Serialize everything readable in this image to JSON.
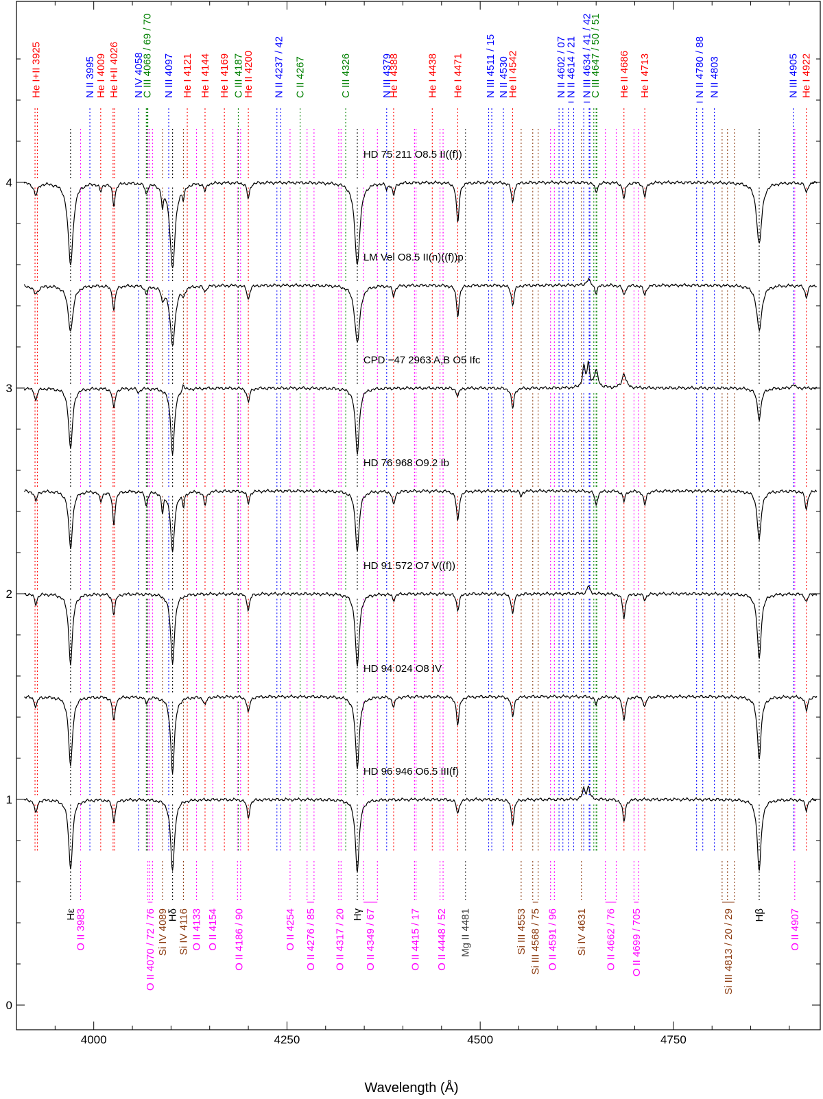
{
  "chart_data": {
    "type": "line",
    "xlabel": "Wavelength (Å)",
    "ylabel": "",
    "xlim": [
      3900,
      4940
    ],
    "ylim": [
      -0.12,
      4.88
    ],
    "x_ticks": [
      4000,
      4250,
      4500,
      4750
    ],
    "x_tick_labels": [
      "4000",
      "4250",
      "4500",
      "4750"
    ],
    "y_ticks": [
      0,
      1,
      2,
      3,
      4
    ],
    "y_tick_labels": [
      "0",
      "1",
      "2",
      "3",
      "4"
    ],
    "grid": false,
    "colors": {
      "red": "#ff0000",
      "blue": "#0000ff",
      "green": "#008000",
      "magenta": "#ff00ff",
      "brown": "#8b3a0f",
      "black": "#000000",
      "gray": "#404040"
    },
    "top_lines": [
      {
        "label": "He I+II 3925",
        "color": "red",
        "waves": [
          3924,
          3927
        ]
      },
      {
        "label": "N II 3995",
        "color": "blue",
        "waves": [
          3995
        ]
      },
      {
        "label": "He I 4009",
        "color": "red",
        "waves": [
          4009
        ]
      },
      {
        "label": "He I+II 4026",
        "color": "red",
        "waves": [
          4025,
          4027
        ]
      },
      {
        "label": "N IV 4058",
        "color": "blue",
        "waves": [
          4058
        ]
      },
      {
        "label": "C III 4068 / 69 / 70",
        "color": "green",
        "waves": [
          4068,
          4069,
          4070
        ]
      },
      {
        "label": "N III 4097",
        "color": "blue",
        "waves": [
          4097
        ]
      },
      {
        "label": "He I 4121",
        "color": "red",
        "waves": [
          4121
        ]
      },
      {
        "label": "He I 4144",
        "color": "red",
        "waves": [
          4144
        ]
      },
      {
        "label": "He I 4169",
        "color": "red",
        "waves": [
          4169
        ]
      },
      {
        "label": "C III 4187",
        "color": "green",
        "waves": [
          4187
        ]
      },
      {
        "label": "He II 4200",
        "color": "red",
        "waves": [
          4200
        ]
      },
      {
        "label": "N II 4237 / 42",
        "color": "blue",
        "waves": [
          4237,
          4242
        ]
      },
      {
        "label": "C II 4267",
        "color": "green",
        "waves": [
          4267
        ]
      },
      {
        "label": "C III 4326",
        "color": "green",
        "waves": [
          4326
        ]
      },
      {
        "label": "N III 4379",
        "color": "blue",
        "waves": [
          4379
        ]
      },
      {
        "label": "He I 4388",
        "color": "red",
        "waves": [
          4388
        ]
      },
      {
        "label": "He I 4438",
        "color": "red",
        "waves": [
          4438
        ]
      },
      {
        "label": "He I 4471",
        "color": "red",
        "waves": [
          4471
        ]
      },
      {
        "label": "N III 4511 / 15",
        "color": "blue",
        "waves": [
          4511,
          4515
        ]
      },
      {
        "label": "N II 4530",
        "color": "blue",
        "waves": [
          4530
        ]
      },
      {
        "label": "He II 4542",
        "color": "red",
        "waves": [
          4542
        ]
      },
      {
        "label": "N II 4602 / 07",
        "color": "blue",
        "waves": [
          4602,
          4607
        ]
      },
      {
        "label": "N II 4614 / 21",
        "color": "blue",
        "waves": [
          4614,
          4621
        ]
      },
      {
        "label": "N III 4634 / 41 / 42",
        "color": "blue",
        "waves": [
          4634,
          4641,
          4642
        ]
      },
      {
        "label": "C III 4647 / 50 / 51",
        "color": "green",
        "waves": [
          4647,
          4650,
          4651
        ]
      },
      {
        "label": "He II 4686",
        "color": "red",
        "waves": [
          4686
        ]
      },
      {
        "label": "He I 4713",
        "color": "red",
        "waves": [
          4713
        ]
      },
      {
        "label": "N II 4780 / 88",
        "color": "blue",
        "waves": [
          4780,
          4788
        ]
      },
      {
        "label": "N II 4803",
        "color": "blue",
        "waves": [
          4803
        ]
      },
      {
        "label": "N III 4905",
        "color": "blue",
        "waves": [
          4905
        ]
      },
      {
        "label": "He I 4922",
        "color": "red",
        "waves": [
          4922
        ]
      }
    ],
    "bottom_lines": [
      {
        "label": "Hε",
        "color": "black",
        "waves": [
          3970
        ]
      },
      {
        "label": "O II 3983",
        "color": "magenta",
        "waves": [
          3983
        ]
      },
      {
        "label": "O II 4070 / 72 / 76",
        "color": "magenta",
        "waves": [
          4070,
          4072,
          4076
        ]
      },
      {
        "label": "Si IV 4089",
        "color": "brown",
        "waves": [
          4089
        ]
      },
      {
        "label": "Hδ",
        "color": "black",
        "waves": [
          4102
        ]
      },
      {
        "label": "Si IV 4116",
        "color": "brown",
        "waves": [
          4116
        ]
      },
      {
        "label": "O II 4133",
        "color": "magenta",
        "waves": [
          4133
        ]
      },
      {
        "label": "O II 4154",
        "color": "magenta",
        "waves": [
          4154
        ]
      },
      {
        "label": "O II 4186 / 90",
        "color": "magenta",
        "waves": [
          4186,
          4190
        ]
      },
      {
        "label": "O II 4254",
        "color": "magenta",
        "waves": [
          4254
        ]
      },
      {
        "label": "O II 4276 / 85",
        "color": "magenta",
        "waves": [
          4276,
          4285
        ]
      },
      {
        "label": "O II 4317 / 20",
        "color": "magenta",
        "waves": [
          4317,
          4320
        ]
      },
      {
        "label": "Hγ",
        "color": "black",
        "waves": [
          4341
        ]
      },
      {
        "label": "O II 4349 / 67",
        "color": "magenta",
        "waves": [
          4349,
          4367
        ]
      },
      {
        "label": "O II 4415 / 17",
        "color": "magenta",
        "waves": [
          4415,
          4417
        ]
      },
      {
        "label": "O II 4448 / 52",
        "color": "magenta",
        "waves": [
          4448,
          4452
        ]
      },
      {
        "label": "Mg II 4481",
        "color": "gray",
        "waves": [
          4481
        ]
      },
      {
        "label": "Si III 4553",
        "color": "brown",
        "waves": [
          4553
        ]
      },
      {
        "label": "Si III 4568 / 75",
        "color": "brown",
        "waves": [
          4568,
          4575
        ]
      },
      {
        "label": "O II 4591 / 96",
        "color": "magenta",
        "waves": [
          4591,
          4596
        ]
      },
      {
        "label": "Si IV 4631",
        "color": "brown",
        "waves": [
          4631
        ]
      },
      {
        "label": "O II 4662 / 76",
        "color": "magenta",
        "waves": [
          4662,
          4676
        ]
      },
      {
        "label": "O II 4699 / 705",
        "color": "magenta",
        "waves": [
          4699,
          4705
        ]
      },
      {
        "label": "Si III 4813 / 20 / 29",
        "color": "brown",
        "waves": [
          4813,
          4820,
          4829
        ]
      },
      {
        "label": "Hβ",
        "color": "black",
        "waves": [
          4861
        ]
      },
      {
        "label": "O II 4907",
        "color": "magenta",
        "waves": [
          4907
        ]
      }
    ],
    "series": [
      {
        "name": "HD 75 211   O8.5 II((f))",
        "offset": 4.0,
        "lines": [
          {
            "w": 3925,
            "d": 0.06,
            "s": 3
          },
          {
            "w": 3970,
            "d": 0.4,
            "s": 4
          },
          {
            "w": 4009,
            "d": 0.04,
            "s": 2
          },
          {
            "w": 4026,
            "d": 0.11,
            "s": 2
          },
          {
            "w": 4068,
            "d": 0.05,
            "s": 2
          },
          {
            "w": 4089,
            "d": 0.1,
            "s": 1.5
          },
          {
            "w": 4102,
            "d": 0.42,
            "s": 4
          },
          {
            "w": 4116,
            "d": 0.06,
            "s": 1.5
          },
          {
            "w": 4144,
            "d": 0.04,
            "s": 2
          },
          {
            "w": 4200,
            "d": 0.08,
            "s": 2
          },
          {
            "w": 4341,
            "d": 0.4,
            "s": 4
          },
          {
            "w": 4379,
            "d": 0.03,
            "s": 1.5
          },
          {
            "w": 4388,
            "d": 0.06,
            "s": 2
          },
          {
            "w": 4471,
            "d": 0.2,
            "s": 2
          },
          {
            "w": 4542,
            "d": 0.1,
            "s": 2
          },
          {
            "w": 4650,
            "d": 0.05,
            "s": 2
          },
          {
            "w": 4686,
            "d": 0.08,
            "s": 2
          },
          {
            "w": 4713,
            "d": 0.07,
            "s": 2
          },
          {
            "w": 4861,
            "d": 0.3,
            "s": 4
          },
          {
            "w": 4922,
            "d": 0.05,
            "s": 2
          }
        ]
      },
      {
        "name": "LM Vel    O8.5 II(n)((f))p",
        "offset": 3.5,
        "lines": [
          {
            "w": 3925,
            "d": 0.04,
            "s": 4
          },
          {
            "w": 3970,
            "d": 0.22,
            "s": 4
          },
          {
            "w": 4026,
            "d": 0.12,
            "s": 2
          },
          {
            "w": 4068,
            "d": 0.04,
            "s": 2
          },
          {
            "w": 4089,
            "d": 0.06,
            "s": 2
          },
          {
            "w": 4102,
            "d": 0.29,
            "s": 4
          },
          {
            "w": 4116,
            "d": 0.04,
            "s": 2
          },
          {
            "w": 4144,
            "d": 0.03,
            "s": 2
          },
          {
            "w": 4200,
            "d": 0.07,
            "s": 2
          },
          {
            "w": 4341,
            "d": 0.28,
            "s": 4
          },
          {
            "w": 4388,
            "d": 0.05,
            "s": 2
          },
          {
            "w": 4471,
            "d": 0.15,
            "s": 2
          },
          {
            "w": 4542,
            "d": 0.1,
            "s": 2
          },
          {
            "w": 4640,
            "d": -0.03,
            "s": 3
          },
          {
            "w": 4650,
            "d": 0.04,
            "s": 2
          },
          {
            "w": 4686,
            "d": 0.05,
            "s": 2
          },
          {
            "w": 4713,
            "d": 0.05,
            "s": 2
          },
          {
            "w": 4861,
            "d": 0.22,
            "s": 4
          },
          {
            "w": 4922,
            "d": 0.06,
            "s": 2
          }
        ]
      },
      {
        "name": "CPD −47 2963 A,B    O5 Ifc",
        "offset": 3.0,
        "lines": [
          {
            "w": 3925,
            "d": 0.06,
            "s": 2
          },
          {
            "w": 3970,
            "d": 0.3,
            "s": 3
          },
          {
            "w": 4026,
            "d": 0.1,
            "s": 2
          },
          {
            "w": 4058,
            "d": 0.02,
            "s": 2
          },
          {
            "w": 4102,
            "d": 0.32,
            "s": 3
          },
          {
            "w": 4116,
            "d": -0.03,
            "s": 1.5
          },
          {
            "w": 4200,
            "d": 0.07,
            "s": 2
          },
          {
            "w": 4341,
            "d": 0.32,
            "s": 3
          },
          {
            "w": 4471,
            "d": 0.04,
            "s": 2
          },
          {
            "w": 4542,
            "d": 0.1,
            "s": 2
          },
          {
            "w": 4634,
            "d": -0.1,
            "s": 2
          },
          {
            "w": 4640,
            "d": -0.11,
            "s": 2
          },
          {
            "w": 4650,
            "d": -0.08,
            "s": 3
          },
          {
            "w": 4686,
            "d": -0.07,
            "s": 3
          },
          {
            "w": 4861,
            "d": 0.15,
            "s": 3
          },
          {
            "w": 4905,
            "d": -0.02,
            "s": 2
          }
        ]
      },
      {
        "name": "HD 76 968    O9.2 Ib",
        "offset": 2.5,
        "lines": [
          {
            "w": 3925,
            "d": 0.05,
            "s": 2
          },
          {
            "w": 3970,
            "d": 0.28,
            "s": 3
          },
          {
            "w": 4009,
            "d": 0.05,
            "s": 2
          },
          {
            "w": 4026,
            "d": 0.16,
            "s": 2
          },
          {
            "w": 4068,
            "d": 0.07,
            "s": 2
          },
          {
            "w": 4089,
            "d": 0.1,
            "s": 1.5
          },
          {
            "w": 4102,
            "d": 0.3,
            "s": 3
          },
          {
            "w": 4116,
            "d": 0.07,
            "s": 1.5
          },
          {
            "w": 4144,
            "d": 0.07,
            "s": 2
          },
          {
            "w": 4200,
            "d": 0.06,
            "s": 2
          },
          {
            "w": 4341,
            "d": 0.29,
            "s": 3
          },
          {
            "w": 4388,
            "d": 0.07,
            "s": 2
          },
          {
            "w": 4471,
            "d": 0.15,
            "s": 2
          },
          {
            "w": 4553,
            "d": 0.03,
            "s": 1.5
          },
          {
            "w": 4650,
            "d": 0.07,
            "s": 2
          },
          {
            "w": 4686,
            "d": 0.05,
            "s": 2
          },
          {
            "w": 4713,
            "d": 0.07,
            "s": 2
          },
          {
            "w": 4861,
            "d": 0.24,
            "s": 3
          },
          {
            "w": 4922,
            "d": 0.09,
            "s": 2
          }
        ]
      },
      {
        "name": "HD 91 572    O7 V((f))",
        "offset": 2.0,
        "lines": [
          {
            "w": 3925,
            "d": 0.05,
            "s": 2
          },
          {
            "w": 3970,
            "d": 0.34,
            "s": 3
          },
          {
            "w": 4026,
            "d": 0.1,
            "s": 2
          },
          {
            "w": 4102,
            "d": 0.34,
            "s": 3
          },
          {
            "w": 4200,
            "d": 0.08,
            "s": 2
          },
          {
            "w": 4341,
            "d": 0.36,
            "s": 3
          },
          {
            "w": 4388,
            "d": 0.03,
            "s": 2
          },
          {
            "w": 4471,
            "d": 0.08,
            "s": 2
          },
          {
            "w": 4542,
            "d": 0.1,
            "s": 2
          },
          {
            "w": 4640,
            "d": -0.04,
            "s": 2
          },
          {
            "w": 4686,
            "d": 0.12,
            "s": 2
          },
          {
            "w": 4713,
            "d": 0.03,
            "s": 2
          },
          {
            "w": 4861,
            "d": 0.32,
            "s": 3
          },
          {
            "w": 4922,
            "d": 0.04,
            "s": 2
          }
        ]
      },
      {
        "name": "HD 94 024    O8 IV",
        "offset": 1.5,
        "lines": [
          {
            "w": 3925,
            "d": 0.05,
            "s": 2
          },
          {
            "w": 3970,
            "d": 0.34,
            "s": 3
          },
          {
            "w": 4026,
            "d": 0.12,
            "s": 2
          },
          {
            "w": 4068,
            "d": 0.03,
            "s": 2
          },
          {
            "w": 4102,
            "d": 0.37,
            "s": 3
          },
          {
            "w": 4144,
            "d": 0.04,
            "s": 2
          },
          {
            "w": 4200,
            "d": 0.08,
            "s": 2
          },
          {
            "w": 4341,
            "d": 0.35,
            "s": 3
          },
          {
            "w": 4388,
            "d": 0.05,
            "s": 2
          },
          {
            "w": 4471,
            "d": 0.14,
            "s": 2
          },
          {
            "w": 4542,
            "d": 0.1,
            "s": 2
          },
          {
            "w": 4650,
            "d": 0.04,
            "s": 2
          },
          {
            "w": 4686,
            "d": 0.12,
            "s": 2
          },
          {
            "w": 4713,
            "d": 0.05,
            "s": 2
          },
          {
            "w": 4861,
            "d": 0.3,
            "s": 3
          },
          {
            "w": 4922,
            "d": 0.07,
            "s": 2
          }
        ]
      },
      {
        "name": "HD 96 946    O6.5 III(f)",
        "offset": 1.0,
        "lines": [
          {
            "w": 3925,
            "d": 0.07,
            "s": 2
          },
          {
            "w": 3970,
            "d": 0.34,
            "s": 3
          },
          {
            "w": 4026,
            "d": 0.11,
            "s": 2
          },
          {
            "w": 4102,
            "d": 0.35,
            "s": 3
          },
          {
            "w": 4200,
            "d": 0.09,
            "s": 2
          },
          {
            "w": 4341,
            "d": 0.35,
            "s": 3
          },
          {
            "w": 4471,
            "d": 0.07,
            "s": 2
          },
          {
            "w": 4542,
            "d": 0.12,
            "s": 2
          },
          {
            "w": 4634,
            "d": -0.05,
            "s": 2
          },
          {
            "w": 4640,
            "d": -0.06,
            "s": 2
          },
          {
            "w": 4686,
            "d": 0.11,
            "s": 2
          },
          {
            "w": 4861,
            "d": 0.35,
            "s": 3
          },
          {
            "w": 4922,
            "d": 0.05,
            "s": 2
          }
        ]
      }
    ]
  }
}
